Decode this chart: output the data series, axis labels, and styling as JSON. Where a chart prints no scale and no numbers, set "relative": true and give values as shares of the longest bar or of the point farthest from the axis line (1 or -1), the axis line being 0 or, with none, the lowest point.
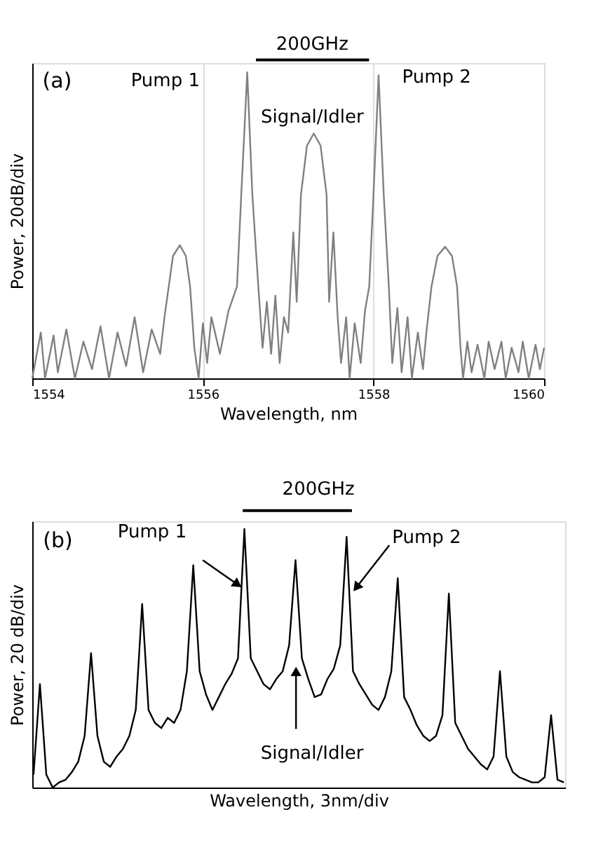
{
  "chart_data": [
    {
      "type": "line",
      "xlabel": "Wavelength, nm",
      "ylabel": "Power, 20dB/div",
      "relative": true,
      "grid": "x",
      "xlim": [
        1554,
        1560
      ],
      "xticks": [
        1554,
        1556,
        1558,
        1560
      ],
      "annotations": [
        "(a)",
        "Pump 1",
        "Signal/Idler",
        "Pump 2",
        "200GHz"
      ],
      "x": [
        1554.0,
        1554.1,
        1554.15,
        1554.25,
        1554.3,
        1554.4,
        1554.5,
        1554.6,
        1554.7,
        1554.8,
        1554.9,
        1555.0,
        1555.1,
        1555.2,
        1555.3,
        1555.4,
        1555.5,
        1555.55,
        1555.6,
        1555.65,
        1555.73,
        1555.8,
        1555.85,
        1555.9,
        1555.95,
        1556.0,
        1556.05,
        1556.1,
        1556.2,
        1556.3,
        1556.4,
        1556.45,
        1556.52,
        1556.58,
        1556.65,
        1556.7,
        1556.75,
        1556.8,
        1556.85,
        1556.9,
        1556.95,
        1557.0,
        1557.06,
        1557.1,
        1557.15,
        1557.22,
        1557.3,
        1557.38,
        1557.45,
        1557.48,
        1557.53,
        1557.58,
        1557.62,
        1557.68,
        1557.72,
        1557.78,
        1557.85,
        1557.9,
        1557.95,
        1558.0,
        1558.06,
        1558.12,
        1558.18,
        1558.22,
        1558.28,
        1558.33,
        1558.4,
        1558.45,
        1558.52,
        1558.58,
        1558.62,
        1558.68,
        1558.75,
        1558.84,
        1558.92,
        1558.98,
        1559.02,
        1559.05,
        1559.1,
        1559.15,
        1559.22,
        1559.3,
        1559.35,
        1559.42,
        1559.5,
        1559.55,
        1559.62,
        1559.7,
        1559.75,
        1559.82,
        1559.9,
        1559.95,
        1560.0
      ],
      "series": [
        {
          "color": "#808080",
          "values": [
            0.0,
            0.15,
            0.0,
            0.14,
            0.02,
            0.16,
            0.0,
            0.12,
            0.03,
            0.17,
            0.0,
            0.15,
            0.04,
            0.2,
            0.02,
            0.16,
            0.08,
            0.2,
            0.3,
            0.4,
            0.435,
            0.4,
            0.3,
            0.1,
            0.0,
            0.18,
            0.05,
            0.2,
            0.08,
            0.22,
            0.3,
            0.6,
            1.0,
            0.6,
            0.3,
            0.1,
            0.25,
            0.08,
            0.27,
            0.05,
            0.2,
            0.15,
            0.477,
            0.25,
            0.6,
            0.76,
            0.8,
            0.76,
            0.6,
            0.25,
            0.477,
            0.2,
            0.05,
            0.2,
            0.0,
            0.18,
            0.05,
            0.22,
            0.3,
            0.6,
            0.99,
            0.6,
            0.3,
            0.05,
            0.23,
            0.02,
            0.2,
            0.0,
            0.15,
            0.03,
            0.15,
            0.3,
            0.4,
            0.43,
            0.4,
            0.3,
            0.1,
            0.0,
            0.12,
            0.02,
            0.11,
            0.0,
            0.12,
            0.03,
            0.12,
            0.0,
            0.1,
            0.02,
            0.12,
            0.0,
            0.11,
            0.03,
            0.1
          ]
        }
      ]
    },
    {
      "type": "line",
      "xlabel": "Wavelength, 3nm/div",
      "ylabel": "Power, 20 dB/div",
      "relative": true,
      "annotations": [
        "(b)",
        "Pump 1",
        "200GHz",
        "Pump 2",
        "Signal/Idler"
      ],
      "categories": [
        null,
        null,
        null,
        null,
        null,
        null,
        null,
        null,
        null,
        null,
        null,
        null,
        null,
        null,
        null,
        null,
        null,
        null,
        null,
        null,
        null,
        null,
        null,
        null,
        null,
        null,
        null,
        null,
        null,
        null,
        null,
        null,
        null,
        null,
        null,
        null,
        null,
        null,
        null,
        null,
        null,
        null,
        null,
        null,
        null,
        null,
        null,
        null,
        null,
        null,
        null,
        null,
        null,
        null,
        null,
        null,
        null,
        null,
        null,
        null,
        null,
        null,
        null,
        null,
        null,
        null,
        null,
        null,
        null,
        null,
        null,
        null,
        null,
        null,
        null,
        null,
        null,
        null,
        null,
        null,
        null,
        null,
        null,
        null
      ],
      "series": [
        {
          "color": "#000000",
          "values": [
            0.05,
            0.4,
            0.05,
            0.0,
            0.02,
            0.03,
            0.06,
            0.1,
            0.2,
            0.52,
            0.2,
            0.1,
            0.08,
            0.12,
            0.15,
            0.2,
            0.3,
            0.71,
            0.3,
            0.25,
            0.23,
            0.27,
            0.25,
            0.3,
            0.45,
            0.86,
            0.45,
            0.36,
            0.3,
            0.35,
            0.4,
            0.44,
            0.5,
            1.0,
            0.5,
            0.45,
            0.4,
            0.38,
            0.42,
            0.45,
            0.55,
            0.88,
            0.5,
            0.42,
            0.35,
            0.36,
            0.42,
            0.46,
            0.55,
            0.97,
            0.45,
            0.4,
            0.36,
            0.32,
            0.3,
            0.35,
            0.45,
            0.81,
            0.35,
            0.3,
            0.24,
            0.2,
            0.18,
            0.2,
            0.28,
            0.75,
            0.25,
            0.2,
            0.15,
            0.12,
            0.09,
            0.07,
            0.12,
            0.45,
            0.12,
            0.06,
            0.04,
            0.03,
            0.02,
            0.02,
            0.04,
            0.28,
            0.03,
            0.02
          ]
        }
      ]
    }
  ]
}
